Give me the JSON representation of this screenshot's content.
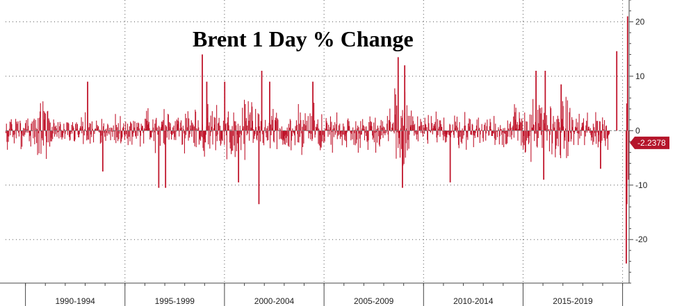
{
  "chart_data": {
    "type": "bar",
    "title": "Brent 1 Day % Change",
    "xlabel": "",
    "ylabel": "",
    "x_range": [
      "1989-01-01",
      "2020-04-30"
    ],
    "ylim": [
      -28,
      24
    ],
    "yticks": [
      20,
      10,
      0,
      -10,
      -20
    ],
    "ytick_labels": [
      "20",
      "10",
      "0",
      "-10",
      "-20"
    ],
    "xtick_labels": [
      "1990-1994",
      "1995-1999",
      "2000-2004",
      "2005-2009",
      "2010-2014",
      "2015-2019"
    ],
    "xtick_ranges": [
      [
        "1990-01-01",
        "1994-12-31"
      ],
      [
        "1995-01-01",
        "1999-12-31"
      ],
      [
        "2000-01-01",
        "2004-12-31"
      ],
      [
        "2005-01-01",
        "2009-12-31"
      ],
      [
        "2010-01-01",
        "2014-12-31"
      ],
      [
        "2015-01-01",
        "2019-12-31"
      ]
    ],
    "grid": true,
    "bar_color": "#c0152b",
    "last_value": -2.2378,
    "last_value_label": "-2.2378",
    "notable_points": [
      {
        "x": "1993-02-15",
        "y": 9
      },
      {
        "x": "1993-11-20",
        "y": -7.5
      },
      {
        "x": "1996-09-12",
        "y": -10.5
      },
      {
        "x": "1997-01-15",
        "y": -10.5
      },
      {
        "x": "1998-11-20",
        "y": 14
      },
      {
        "x": "1999-02-10",
        "y": 9
      },
      {
        "x": "2000-01-05",
        "y": 9
      },
      {
        "x": "2000-09-15",
        "y": -9.5
      },
      {
        "x": "2001-09-24",
        "y": -13.5
      },
      {
        "x": "2001-11-15",
        "y": 11
      },
      {
        "x": "2002-04-10",
        "y": 9
      },
      {
        "x": "2004-06-10",
        "y": 9
      },
      {
        "x": "2008-09-22",
        "y": 13.5
      },
      {
        "x": "2008-12-10",
        "y": -10.5
      },
      {
        "x": "2009-01-20",
        "y": 12
      },
      {
        "x": "2011-05-05",
        "y": -9.5
      },
      {
        "x": "2015-08-27",
        "y": 11
      },
      {
        "x": "2016-01-15",
        "y": -9
      },
      {
        "x": "2016-02-12",
        "y": 11
      },
      {
        "x": "2016-11-30",
        "y": 8.5
      },
      {
        "x": "2018-11-23",
        "y": -7
      },
      {
        "x": "2019-09-16",
        "y": 14.6
      },
      {
        "x": "2020-03-09",
        "y": -24.4
      },
      {
        "x": "2020-03-18",
        "y": -13.5
      },
      {
        "x": "2020-03-20",
        "y": 5
      },
      {
        "x": "2020-04-02",
        "y": 21
      },
      {
        "x": "2020-04-21",
        "y": -9
      },
      {
        "x": "2020-04-27",
        "y": -2.2378
      }
    ],
    "volatility_regimes": [
      {
        "start": "1989-01-01",
        "end": "1990-07-31",
        "amplitude": 2.6
      },
      {
        "start": "1990-08-01",
        "end": "1991-03-31",
        "amplitude": 4.5
      },
      {
        "start": "1991-04-01",
        "end": "1995-12-31",
        "amplitude": 2.5
      },
      {
        "start": "1996-01-01",
        "end": "1998-06-30",
        "amplitude": 3.3
      },
      {
        "start": "1998-07-01",
        "end": "2001-12-31",
        "amplitude": 4.2
      },
      {
        "start": "2002-01-01",
        "end": "2004-12-31",
        "amplitude": 3.8
      },
      {
        "start": "2005-01-01",
        "end": "2008-06-30",
        "amplitude": 3.0
      },
      {
        "start": "2008-07-01",
        "end": "2009-06-30",
        "amplitude": 7.0
      },
      {
        "start": "2009-07-01",
        "end": "2014-06-30",
        "amplitude": 2.6
      },
      {
        "start": "2014-07-01",
        "end": "2017-06-30",
        "amplitude": 4.6
      },
      {
        "start": "2017-07-01",
        "end": "2019-12-31",
        "amplitude": 3.1
      },
      {
        "start": "2020-01-01",
        "end": "2020-04-30",
        "amplitude": 6.5
      }
    ]
  }
}
